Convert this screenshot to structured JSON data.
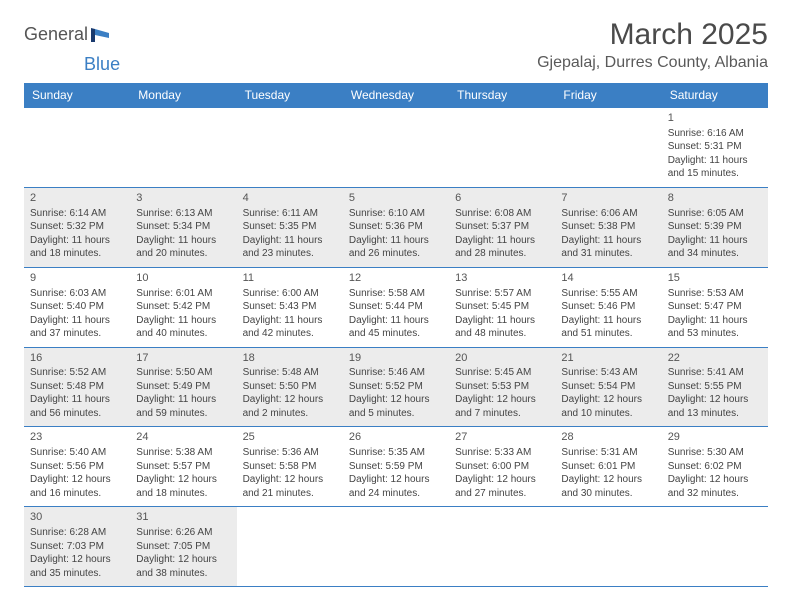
{
  "logo": {
    "text1": "General",
    "text2": "Blue"
  },
  "title": "March 2025",
  "location": "Gjepalaj, Durres County, Albania",
  "colors": {
    "header_bg": "#3b7fc4",
    "header_text": "#ffffff",
    "border": "#3b7fc4",
    "shaded_bg": "#ececec",
    "text": "#444444",
    "title_text": "#4a4a4a"
  },
  "day_headers": [
    "Sunday",
    "Monday",
    "Tuesday",
    "Wednesday",
    "Thursday",
    "Friday",
    "Saturday"
  ],
  "weeks": [
    [
      {
        "day": "",
        "lines": [],
        "shaded": false,
        "empty": true
      },
      {
        "day": "",
        "lines": [],
        "shaded": false,
        "empty": true
      },
      {
        "day": "",
        "lines": [],
        "shaded": false,
        "empty": true
      },
      {
        "day": "",
        "lines": [],
        "shaded": false,
        "empty": true
      },
      {
        "day": "",
        "lines": [],
        "shaded": false,
        "empty": true
      },
      {
        "day": "",
        "lines": [],
        "shaded": false,
        "empty": true
      },
      {
        "day": "1",
        "lines": [
          "Sunrise: 6:16 AM",
          "Sunset: 5:31 PM",
          "Daylight: 11 hours",
          "and 15 minutes."
        ],
        "shaded": false
      }
    ],
    [
      {
        "day": "2",
        "lines": [
          "Sunrise: 6:14 AM",
          "Sunset: 5:32 PM",
          "Daylight: 11 hours",
          "and 18 minutes."
        ],
        "shaded": true
      },
      {
        "day": "3",
        "lines": [
          "Sunrise: 6:13 AM",
          "Sunset: 5:34 PM",
          "Daylight: 11 hours",
          "and 20 minutes."
        ],
        "shaded": true
      },
      {
        "day": "4",
        "lines": [
          "Sunrise: 6:11 AM",
          "Sunset: 5:35 PM",
          "Daylight: 11 hours",
          "and 23 minutes."
        ],
        "shaded": true
      },
      {
        "day": "5",
        "lines": [
          "Sunrise: 6:10 AM",
          "Sunset: 5:36 PM",
          "Daylight: 11 hours",
          "and 26 minutes."
        ],
        "shaded": true
      },
      {
        "day": "6",
        "lines": [
          "Sunrise: 6:08 AM",
          "Sunset: 5:37 PM",
          "Daylight: 11 hours",
          "and 28 minutes."
        ],
        "shaded": true
      },
      {
        "day": "7",
        "lines": [
          "Sunrise: 6:06 AM",
          "Sunset: 5:38 PM",
          "Daylight: 11 hours",
          "and 31 minutes."
        ],
        "shaded": true
      },
      {
        "day": "8",
        "lines": [
          "Sunrise: 6:05 AM",
          "Sunset: 5:39 PM",
          "Daylight: 11 hours",
          "and 34 minutes."
        ],
        "shaded": true
      }
    ],
    [
      {
        "day": "9",
        "lines": [
          "Sunrise: 6:03 AM",
          "Sunset: 5:40 PM",
          "Daylight: 11 hours",
          "and 37 minutes."
        ],
        "shaded": false
      },
      {
        "day": "10",
        "lines": [
          "Sunrise: 6:01 AM",
          "Sunset: 5:42 PM",
          "Daylight: 11 hours",
          "and 40 minutes."
        ],
        "shaded": false
      },
      {
        "day": "11",
        "lines": [
          "Sunrise: 6:00 AM",
          "Sunset: 5:43 PM",
          "Daylight: 11 hours",
          "and 42 minutes."
        ],
        "shaded": false
      },
      {
        "day": "12",
        "lines": [
          "Sunrise: 5:58 AM",
          "Sunset: 5:44 PM",
          "Daylight: 11 hours",
          "and 45 minutes."
        ],
        "shaded": false
      },
      {
        "day": "13",
        "lines": [
          "Sunrise: 5:57 AM",
          "Sunset: 5:45 PM",
          "Daylight: 11 hours",
          "and 48 minutes."
        ],
        "shaded": false
      },
      {
        "day": "14",
        "lines": [
          "Sunrise: 5:55 AM",
          "Sunset: 5:46 PM",
          "Daylight: 11 hours",
          "and 51 minutes."
        ],
        "shaded": false
      },
      {
        "day": "15",
        "lines": [
          "Sunrise: 5:53 AM",
          "Sunset: 5:47 PM",
          "Daylight: 11 hours",
          "and 53 minutes."
        ],
        "shaded": false
      }
    ],
    [
      {
        "day": "16",
        "lines": [
          "Sunrise: 5:52 AM",
          "Sunset: 5:48 PM",
          "Daylight: 11 hours",
          "and 56 minutes."
        ],
        "shaded": true
      },
      {
        "day": "17",
        "lines": [
          "Sunrise: 5:50 AM",
          "Sunset: 5:49 PM",
          "Daylight: 11 hours",
          "and 59 minutes."
        ],
        "shaded": true
      },
      {
        "day": "18",
        "lines": [
          "Sunrise: 5:48 AM",
          "Sunset: 5:50 PM",
          "Daylight: 12 hours",
          "and 2 minutes."
        ],
        "shaded": true
      },
      {
        "day": "19",
        "lines": [
          "Sunrise: 5:46 AM",
          "Sunset: 5:52 PM",
          "Daylight: 12 hours",
          "and 5 minutes."
        ],
        "shaded": true
      },
      {
        "day": "20",
        "lines": [
          "Sunrise: 5:45 AM",
          "Sunset: 5:53 PM",
          "Daylight: 12 hours",
          "and 7 minutes."
        ],
        "shaded": true
      },
      {
        "day": "21",
        "lines": [
          "Sunrise: 5:43 AM",
          "Sunset: 5:54 PM",
          "Daylight: 12 hours",
          "and 10 minutes."
        ],
        "shaded": true
      },
      {
        "day": "22",
        "lines": [
          "Sunrise: 5:41 AM",
          "Sunset: 5:55 PM",
          "Daylight: 12 hours",
          "and 13 minutes."
        ],
        "shaded": true
      }
    ],
    [
      {
        "day": "23",
        "lines": [
          "Sunrise: 5:40 AM",
          "Sunset: 5:56 PM",
          "Daylight: 12 hours",
          "and 16 minutes."
        ],
        "shaded": false
      },
      {
        "day": "24",
        "lines": [
          "Sunrise: 5:38 AM",
          "Sunset: 5:57 PM",
          "Daylight: 12 hours",
          "and 18 minutes."
        ],
        "shaded": false
      },
      {
        "day": "25",
        "lines": [
          "Sunrise: 5:36 AM",
          "Sunset: 5:58 PM",
          "Daylight: 12 hours",
          "and 21 minutes."
        ],
        "shaded": false
      },
      {
        "day": "26",
        "lines": [
          "Sunrise: 5:35 AM",
          "Sunset: 5:59 PM",
          "Daylight: 12 hours",
          "and 24 minutes."
        ],
        "shaded": false
      },
      {
        "day": "27",
        "lines": [
          "Sunrise: 5:33 AM",
          "Sunset: 6:00 PM",
          "Daylight: 12 hours",
          "and 27 minutes."
        ],
        "shaded": false
      },
      {
        "day": "28",
        "lines": [
          "Sunrise: 5:31 AM",
          "Sunset: 6:01 PM",
          "Daylight: 12 hours",
          "and 30 minutes."
        ],
        "shaded": false
      },
      {
        "day": "29",
        "lines": [
          "Sunrise: 5:30 AM",
          "Sunset: 6:02 PM",
          "Daylight: 12 hours",
          "and 32 minutes."
        ],
        "shaded": false
      }
    ],
    [
      {
        "day": "30",
        "lines": [
          "Sunrise: 6:28 AM",
          "Sunset: 7:03 PM",
          "Daylight: 12 hours",
          "and 35 minutes."
        ],
        "shaded": true
      },
      {
        "day": "31",
        "lines": [
          "Sunrise: 6:26 AM",
          "Sunset: 7:05 PM",
          "Daylight: 12 hours",
          "and 38 minutes."
        ],
        "shaded": true
      },
      {
        "day": "",
        "lines": [],
        "shaded": false,
        "empty": true
      },
      {
        "day": "",
        "lines": [],
        "shaded": false,
        "empty": true
      },
      {
        "day": "",
        "lines": [],
        "shaded": false,
        "empty": true
      },
      {
        "day": "",
        "lines": [],
        "shaded": false,
        "empty": true
      },
      {
        "day": "",
        "lines": [],
        "shaded": false,
        "empty": true
      }
    ]
  ]
}
